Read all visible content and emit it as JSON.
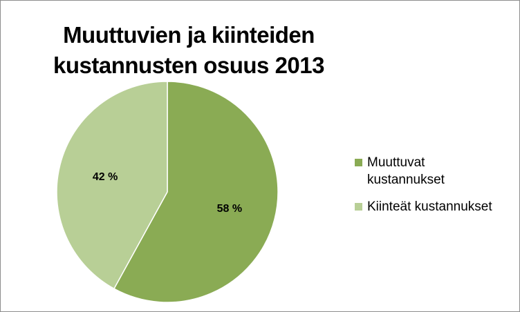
{
  "chart_data": {
    "type": "pie",
    "title": "Muuttuvien ja kiinteiden kustannusten osuus 2013",
    "slices": [
      {
        "label": "Muuttuvat kustannukset",
        "value": 58,
        "data_label": "58 %",
        "color": "#8aab54"
      },
      {
        "label": "Kiinteät kustannukset",
        "value": 42,
        "data_label": "42 %",
        "color": "#b8cf96"
      }
    ],
    "legend_position": "right"
  },
  "legend": {
    "items": [
      {
        "label_line1": "Muuttuvat",
        "label_line2": "kustannukset",
        "color": "#8aab54"
      },
      {
        "label_line1": "Kiinteät kustannukset",
        "label_line2": "",
        "color": "#b8cf96"
      }
    ]
  }
}
